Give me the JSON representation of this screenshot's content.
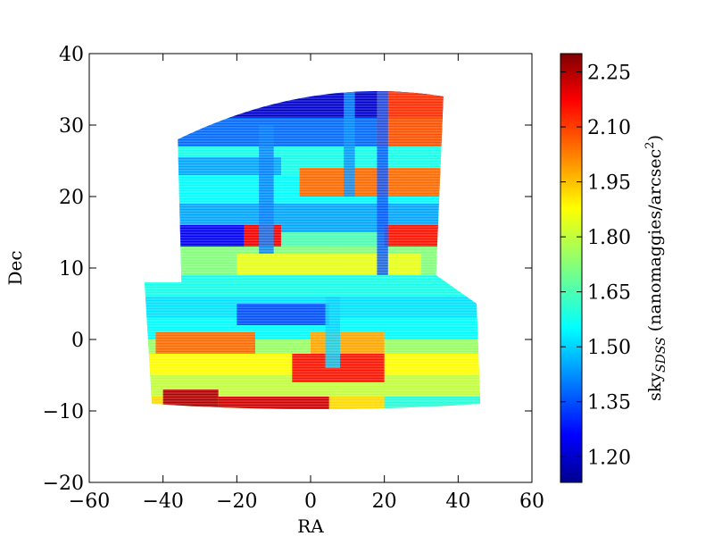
{
  "chart_data": {
    "type": "heatmap",
    "title": "",
    "xlabel": "RA",
    "ylabel": "Dec",
    "xlim": [
      -60,
      60
    ],
    "ylim": [
      -20,
      40
    ],
    "xticks": [
      -60,
      -40,
      -20,
      0,
      20,
      40,
      60
    ],
    "yticks": [
      -20,
      -10,
      0,
      10,
      20,
      30,
      40
    ],
    "xtick_labels": [
      "−60",
      "−40",
      "−20",
      "0",
      "20",
      "40",
      "60"
    ],
    "ytick_labels": [
      "−20",
      "−10",
      "0",
      "10",
      "20",
      "30",
      "40"
    ],
    "grid": false,
    "colormap": "jet",
    "colorbar": {
      "label_main": "sky",
      "label_sub": "SDSS",
      "label_unit": " (nanomaggies/arcsec",
      "label_sup": "2",
      "label_close": ")",
      "range": [
        1.13,
        2.3
      ],
      "ticks": [
        1.2,
        1.35,
        1.5,
        1.65,
        1.8,
        1.95,
        2.1,
        2.25
      ],
      "tick_labels": [
        "1.20",
        "1.35",
        "1.50",
        "1.65",
        "1.80",
        "1.95",
        "2.10",
        "2.25"
      ],
      "position": "right"
    },
    "footprint": {
      "upper_region": {
        "ra_range": [
          -36,
          36
        ],
        "dec_range": [
          9,
          35
        ]
      },
      "lower_region": {
        "ra_range": [
          -45,
          46
        ],
        "dec_range": [
          -10,
          9
        ]
      }
    },
    "bands": [
      {
        "dec": [
          31,
          35.5
        ],
        "ra": [
          -36,
          36
        ],
        "value": 1.2
      },
      {
        "dec": [
          27,
          31
        ],
        "ra": [
          -36,
          36
        ],
        "value": 1.38
      },
      {
        "dec": [
          23,
          27
        ],
        "ra": [
          -36,
          36
        ],
        "value": 1.58
      },
      {
        "dec": [
          19,
          23
        ],
        "ra": [
          -36,
          36
        ],
        "value": 1.55
      },
      {
        "dec": [
          15,
          19
        ],
        "ra": [
          -36,
          36
        ],
        "value": 1.45
      },
      {
        "dec": [
          13,
          15
        ],
        "ra": [
          -36,
          36
        ],
        "value": 1.65
      },
      {
        "dec": [
          9,
          13
        ],
        "ra": [
          -36,
          36
        ],
        "value": 1.72
      },
      {
        "dec": [
          6,
          9
        ],
        "ra": [
          -45,
          46
        ],
        "value": 1.58
      },
      {
        "dec": [
          3,
          6
        ],
        "ra": [
          -45,
          46
        ],
        "value": 1.52
      },
      {
        "dec": [
          0,
          3
        ],
        "ra": [
          -45,
          46
        ],
        "value": 1.55
      },
      {
        "dec": [
          -2,
          0
        ],
        "ra": [
          -45,
          46
        ],
        "value": 1.75
      },
      {
        "dec": [
          -5,
          -2
        ],
        "ra": [
          -45,
          46
        ],
        "value": 1.88
      },
      {
        "dec": [
          -8,
          -5
        ],
        "ra": [
          -45,
          46
        ],
        "value": 1.8
      },
      {
        "dec": [
          -10,
          -8
        ],
        "ra": [
          -45,
          46
        ],
        "value": 1.92
      },
      {
        "dec": [
          31,
          35
        ],
        "ra": [
          18,
          36
        ],
        "value": 2.12
      },
      {
        "dec": [
          27,
          31
        ],
        "ra": [
          18,
          36
        ],
        "value": 2.08
      },
      {
        "dec": [
          20,
          24
        ],
        "ra": [
          -3,
          36
        ],
        "value": 2.05
      },
      {
        "dec": [
          23,
          25.5
        ],
        "ra": [
          -36,
          -8
        ],
        "value": 1.45
      },
      {
        "dec": [
          13,
          16
        ],
        "ra": [
          -36,
          -18
        ],
        "value": 1.25
      },
      {
        "dec": [
          13,
          16
        ],
        "ra": [
          -18,
          -8
        ],
        "value": 2.18
      },
      {
        "dec": [
          13,
          16
        ],
        "ra": [
          20,
          36
        ],
        "value": 2.15
      },
      {
        "dec": [
          9,
          12
        ],
        "ra": [
          -20,
          30
        ],
        "value": 1.85
      },
      {
        "dec": [
          2,
          5
        ],
        "ra": [
          -20,
          5
        ],
        "value": 1.35
      },
      {
        "dec": [
          -2,
          1
        ],
        "ra": [
          -42,
          -15
        ],
        "value": 2.05
      },
      {
        "dec": [
          -2,
          1
        ],
        "ra": [
          0,
          20
        ],
        "value": 1.98
      },
      {
        "dec": [
          -6,
          -2
        ],
        "ra": [
          -5,
          20
        ],
        "value": 2.15
      },
      {
        "dec": [
          -10,
          -7
        ],
        "ra": [
          -40,
          -25
        ],
        "value": 2.25
      },
      {
        "dec": [
          -10,
          -8
        ],
        "ra": [
          -25,
          5
        ],
        "value": 2.22
      },
      {
        "dec": [
          -10,
          -8
        ],
        "ra": [
          20,
          46
        ],
        "value": 1.6
      }
    ],
    "stripes": [
      {
        "ra": [
          -14,
          -10
        ],
        "dec": [
          12,
          30
        ],
        "value": 1.4
      },
      {
        "ra": [
          9,
          12
        ],
        "dec": [
          20,
          35
        ],
        "value": 1.42
      },
      {
        "ra": [
          18,
          21
        ],
        "dec": [
          9,
          35
        ],
        "value": 1.35
      },
      {
        "ra": [
          4,
          8
        ],
        "dec": [
          -4,
          6
        ],
        "value": 1.5
      }
    ]
  }
}
